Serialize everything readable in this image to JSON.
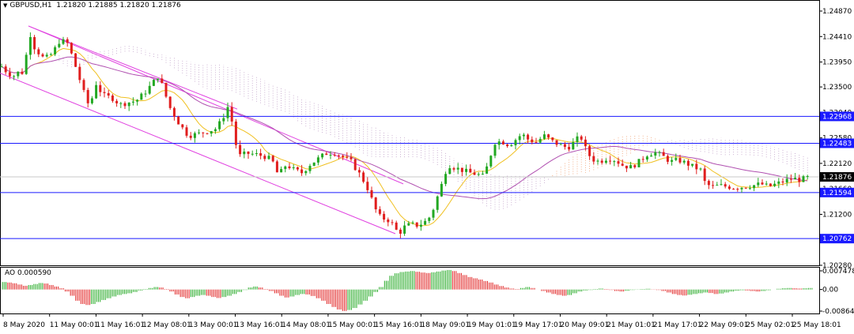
{
  "header": {
    "symbol": "GBPUSD,H1",
    "ohlc": "1.21820 1.21885 1.21820 1.21876"
  },
  "ao_panel": {
    "label": "AO",
    "value": "0.000590",
    "ticks": [
      "0.007478",
      "0.00",
      "-0.008647"
    ]
  },
  "colors": {
    "bull": "#22a822",
    "bear": "#e01e1e",
    "channel": "#e040e0",
    "ma_fast": "#f0c020",
    "ma_slow": "#b050b0",
    "cloud_a": "#f0a070",
    "cloud_b": "#c0a0c8",
    "hline": "#1a1aff",
    "price_tag_bg": "#1a1aff",
    "current_tag_bg": "#000000"
  },
  "chart_data": {
    "type": "candlestick",
    "symbol": "GBPUSD",
    "timeframe": "H1",
    "ylim": [
      1.2028,
      1.2487
    ],
    "y_ticks": [
      "1.24870",
      "1.24410",
      "1.23950",
      "1.23500",
      "1.23040",
      "1.22580",
      "1.22120",
      "1.21660",
      "1.21200",
      "1.20740",
      "1.20280"
    ],
    "x_ticks": [
      "8 May 2020",
      "11 May 00:01",
      "11 May 16:01",
      "12 May 08:01",
      "13 May 00:01",
      "13 May 16:01",
      "14 May 08:01",
      "15 May 00:01",
      "15 May 16:01",
      "18 May 09:01",
      "19 May 01:01",
      "19 May 17:01",
      "20 May 09:01",
      "21 May 01:01",
      "21 May 17:01",
      "22 May 09:01",
      "25 May 02:01",
      "25 May 18:01"
    ],
    "horizontal_levels": [
      "1.22968",
      "1.22483",
      "1.21594",
      "1.20762"
    ],
    "current_price": "1.21876",
    "close_path": [
      [
        0,
        1.239
      ],
      [
        10,
        1.2375
      ],
      [
        18,
        1.237
      ],
      [
        26,
        1.238
      ],
      [
        31,
        1.237
      ],
      [
        36,
        1.2455
      ],
      [
        44,
        1.242
      ],
      [
        56,
        1.24
      ],
      [
        66,
        1.241
      ],
      [
        76,
        1.2435
      ],
      [
        86,
        1.2428
      ],
      [
        96,
        1.2385
      ],
      [
        106,
        1.234
      ],
      [
        114,
        1.231
      ],
      [
        120,
        1.236
      ],
      [
        130,
        1.2335
      ],
      [
        142,
        1.233
      ],
      [
        152,
        1.2318
      ],
      [
        162,
        1.2322
      ],
      [
        172,
        1.2325
      ],
      [
        182,
        1.2338
      ],
      [
        192,
        1.2355
      ],
      [
        200,
        1.237
      ],
      [
        206,
        1.235
      ],
      [
        214,
        1.2315
      ],
      [
        226,
        1.2285
      ],
      [
        238,
        1.2262
      ],
      [
        250,
        1.2265
      ],
      [
        262,
        1.227
      ],
      [
        274,
        1.2275
      ],
      [
        282,
        1.2295
      ],
      [
        290,
        1.232
      ],
      [
        296,
        1.226
      ],
      [
        302,
        1.2225
      ],
      [
        312,
        1.223
      ],
      [
        324,
        1.2228
      ],
      [
        334,
        1.2225
      ],
      [
        344,
        1.2218
      ],
      [
        352,
        1.219
      ],
      [
        362,
        1.221
      ],
      [
        372,
        1.22
      ],
      [
        382,
        1.2195
      ],
      [
        392,
        1.221
      ],
      [
        402,
        1.222
      ],
      [
        412,
        1.223
      ],
      [
        422,
        1.2232
      ],
      [
        432,
        1.2225
      ],
      [
        444,
        1.2215
      ],
      [
        456,
        1.219
      ],
      [
        464,
        1.217
      ],
      [
        472,
        1.214
      ],
      [
        478,
        1.2118
      ],
      [
        486,
        1.2112
      ],
      [
        494,
        1.2108
      ],
      [
        500,
        1.2092
      ],
      [
        506,
        1.2088
      ],
      [
        512,
        1.2098
      ],
      [
        520,
        1.2102
      ],
      [
        528,
        1.21
      ],
      [
        536,
        1.2105
      ],
      [
        542,
        1.2112
      ],
      [
        548,
        1.213
      ],
      [
        554,
        1.2155
      ],
      [
        560,
        1.218
      ],
      [
        566,
        1.221
      ],
      [
        574,
        1.2205
      ],
      [
        584,
        1.22
      ],
      [
        594,
        1.2195
      ],
      [
        604,
        1.2192
      ],
      [
        612,
        1.2188
      ],
      [
        620,
        1.2225
      ],
      [
        626,
        1.225
      ],
      [
        634,
        1.2252
      ],
      [
        644,
        1.2245
      ],
      [
        652,
        1.2255
      ],
      [
        660,
        1.2265
      ],
      [
        668,
        1.2255
      ],
      [
        678,
        1.225
      ],
      [
        688,
        1.2262
      ],
      [
        698,
        1.2252
      ],
      [
        708,
        1.2245
      ],
      [
        718,
        1.224
      ],
      [
        726,
        1.225
      ],
      [
        734,
        1.2262
      ],
      [
        740,
        1.224
      ],
      [
        748,
        1.222
      ],
      [
        758,
        1.2215
      ],
      [
        768,
        1.2222
      ],
      [
        778,
        1.2218
      ],
      [
        788,
        1.2208
      ],
      [
        798,
        1.2205
      ],
      [
        808,
        1.2215
      ],
      [
        818,
        1.2228
      ],
      [
        828,
        1.2232
      ],
      [
        838,
        1.2225
      ],
      [
        848,
        1.2215
      ],
      [
        858,
        1.2218
      ],
      [
        868,
        1.2212
      ],
      [
        878,
        1.2205
      ],
      [
        886,
        1.22
      ],
      [
        892,
        1.2175
      ],
      [
        900,
        1.217
      ],
      [
        910,
        1.2172
      ],
      [
        920,
        1.217
      ],
      [
        930,
        1.2168
      ],
      [
        940,
        1.217
      ],
      [
        952,
        1.2172
      ],
      [
        962,
        1.2175
      ],
      [
        972,
        1.217
      ],
      [
        982,
        1.2175
      ],
      [
        992,
        1.218
      ],
      [
        1002,
        1.2185
      ],
      [
        1012,
        1.2182
      ],
      [
        1020,
        1.2186
      ],
      [
        1028,
        1.21876
      ]
    ],
    "channel_upper": [
      [
        36,
        1.246
      ],
      [
        510,
        1.2175
      ]
    ],
    "channel_lower": [
      [
        0,
        1.2375
      ],
      [
        500,
        1.2085
      ]
    ],
    "ao_series": [
      0.003,
      0.0028,
      0.0025,
      0.002,
      0.0015,
      0.0018,
      0.0022,
      0.0026,
      0.0024,
      0.0018,
      0.0012,
      0.0005,
      -0.0008,
      -0.0025,
      -0.0045,
      -0.0058,
      -0.0062,
      -0.0058,
      -0.005,
      -0.0042,
      -0.0035,
      -0.0028,
      -0.0022,
      -0.0018,
      -0.0015,
      -0.001,
      -0.0004,
      0.0002,
      0.0006,
      0.001,
      0.0008,
      0.0002,
      -0.0008,
      -0.002,
      -0.003,
      -0.0035,
      -0.003,
      -0.0025,
      -0.0022,
      -0.0025,
      -0.003,
      -0.0034,
      -0.003,
      -0.0025,
      -0.0018,
      -0.001,
      -0.0002,
      0.0008,
      0.0012,
      0.0008,
      0.0002,
      -0.0006,
      -0.0015,
      -0.0025,
      -0.0032,
      -0.0028,
      -0.0022,
      -0.0018,
      -0.002,
      -0.0026,
      -0.0035,
      -0.0045,
      -0.0058,
      -0.007,
      -0.008,
      -0.0086,
      -0.0082,
      -0.0074,
      -0.006,
      -0.0045,
      -0.0028,
      -0.001,
      0.001,
      0.0035,
      0.0055,
      0.0065,
      0.007,
      0.0072,
      0.0074,
      0.0071,
      0.0068,
      0.0066,
      0.0069,
      0.0072,
      0.0076,
      0.0078,
      0.0074,
      0.0066,
      0.0058,
      0.005,
      0.0045,
      0.004,
      0.0034,
      0.0028,
      0.002,
      0.0014,
      0.0008,
      0.0004,
      0.0002,
      0.0006,
      0.001,
      0.0006,
      0.0,
      -0.0006,
      -0.0012,
      -0.0018,
      -0.0022,
      -0.0025,
      -0.0022,
      -0.0015,
      -0.0008,
      -0.0004,
      -0.0002,
      0.0002,
      0.0004,
      0.0002,
      -0.0002,
      -0.0006,
      -0.0008,
      -0.0005,
      -0.0002,
      0.0001,
      0.0002,
      0.0003,
      0.0001,
      -0.0002,
      -0.0006,
      -0.0012,
      -0.0018,
      -0.0022,
      -0.0024,
      -0.0021,
      -0.0018,
      -0.0015,
      -0.0012,
      -0.0014,
      -0.0018,
      -0.0016,
      -0.0012,
      -0.0008,
      -0.0005,
      -0.0003,
      -0.0004,
      -0.0006,
      -0.0008,
      -0.0006,
      -0.0003,
      0.0,
      0.0003,
      0.0005,
      0.0006,
      0.0005,
      0.0004,
      0.0005,
      0.0006
    ]
  }
}
